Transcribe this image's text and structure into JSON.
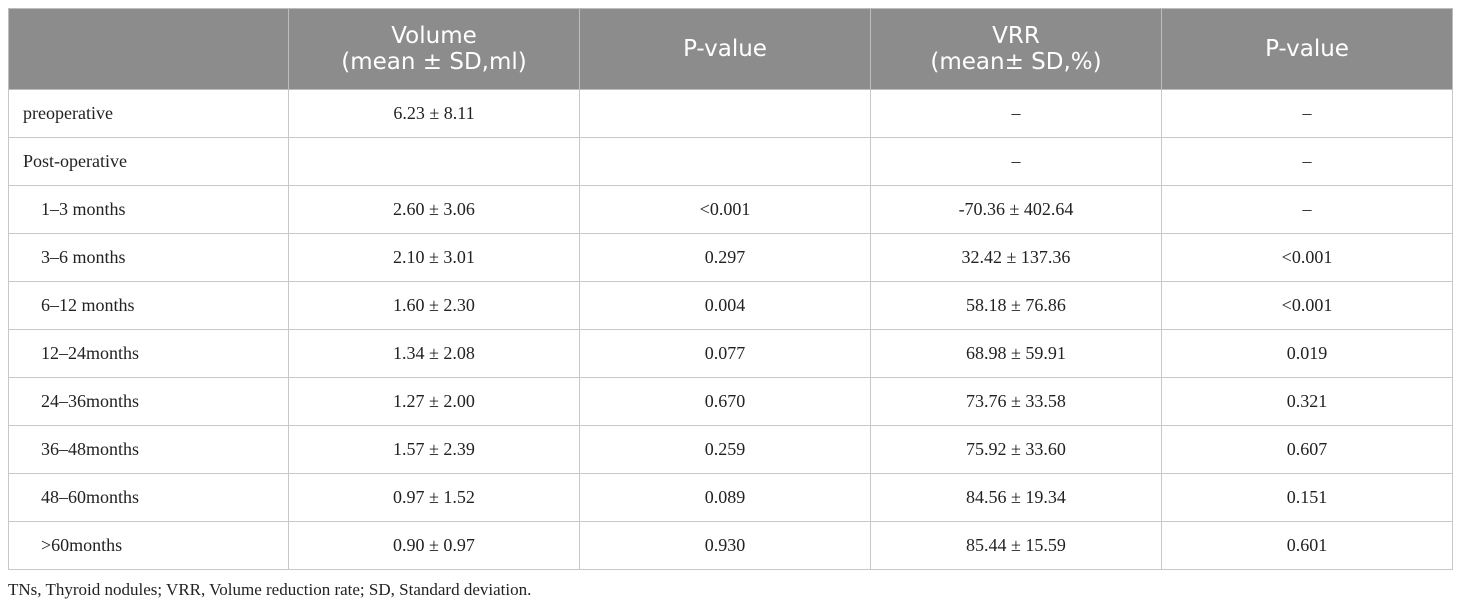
{
  "table": {
    "headers": [
      {
        "lines": [
          ""
        ]
      },
      {
        "lines": [
          "Volume",
          "(mean ± SD,ml)"
        ]
      },
      {
        "lines": [
          "P-value"
        ]
      },
      {
        "lines": [
          "VRR",
          "(mean± SD,%)"
        ]
      },
      {
        "lines": [
          "P-value"
        ]
      }
    ],
    "rows": [
      {
        "label": "preoperative",
        "indent": false,
        "cells": [
          "6.23 ± 8.11",
          "",
          "–",
          "–"
        ]
      },
      {
        "label": "Post-operative",
        "indent": false,
        "cells": [
          "",
          "",
          "–",
          "–"
        ]
      },
      {
        "label": "1–3 months",
        "indent": true,
        "cells": [
          "2.60 ± 3.06",
          "<0.001",
          "-70.36 ± 402.64",
          "–"
        ]
      },
      {
        "label": "3–6 months",
        "indent": true,
        "cells": [
          "2.10 ± 3.01",
          "0.297",
          "32.42 ± 137.36",
          "<0.001"
        ]
      },
      {
        "label": "6–12 months",
        "indent": true,
        "cells": [
          "1.60 ± 2.30",
          "0.004",
          "58.18 ± 76.86",
          "<0.001"
        ]
      },
      {
        "label": "12–24months",
        "indent": true,
        "cells": [
          "1.34 ± 2.08",
          "0.077",
          "68.98 ± 59.91",
          "0.019"
        ]
      },
      {
        "label": "24–36months",
        "indent": true,
        "cells": [
          "1.27 ± 2.00",
          "0.670",
          "73.76 ± 33.58",
          "0.321"
        ]
      },
      {
        "label": "36–48months",
        "indent": true,
        "cells": [
          "1.57 ± 2.39",
          "0.259",
          "75.92 ± 33.60",
          "0.607"
        ]
      },
      {
        "label": "48–60months",
        "indent": true,
        "cells": [
          "0.97 ± 1.52",
          "0.089",
          "84.56 ± 19.34",
          "0.151"
        ]
      },
      {
        "label": ">60months",
        "indent": true,
        "cells": [
          "0.90 ± 0.97",
          "0.930",
          "85.44 ± 15.59",
          "0.601"
        ]
      }
    ]
  },
  "footnote": "TNs, Thyroid nodules; VRR, Volume reduction rate; SD, Standard deviation.",
  "colors": {
    "header_bg": "#8c8c8c",
    "header_text": "#ffffff",
    "grid": "#c8c8c8"
  }
}
